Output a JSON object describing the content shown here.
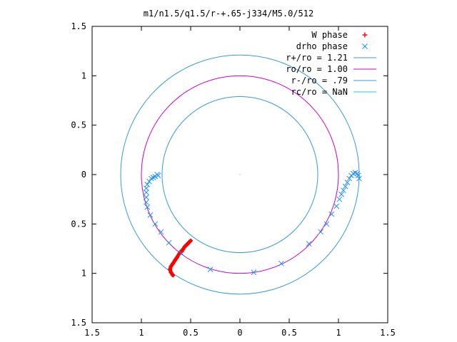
{
  "chart_data": {
    "type": "scatter",
    "title": "m1/n1.5/q1.5/r-+.65-j334/M5.0/512",
    "xlabel": "",
    "ylabel": "",
    "xlim": [
      -1.5,
      1.5
    ],
    "ylim": [
      -1.5,
      1.5
    ],
    "x_ticks": [
      -1.5,
      -1,
      -0.5,
      0,
      0.5,
      1,
      1.5
    ],
    "x_tick_labels": [
      "1.5",
      "1",
      "0.5",
      "0",
      "0.5",
      "1",
      "1.5"
    ],
    "y_ticks": [
      1.5,
      1,
      0.5,
      0,
      -0.5,
      -1,
      -1.5
    ],
    "y_tick_labels": [
      "1.5",
      "1",
      "0.5",
      "0",
      "0.5",
      "1",
      "1.5"
    ],
    "grid": false,
    "legend_position": "top-right",
    "colors": {
      "w_phase": "#ff0000",
      "drho_phase": "#1e90ff",
      "r_plus": "#3a9bdc",
      "ro": "#cc00cc",
      "r_minus": "#3a9bdc",
      "rc": "#00dddd"
    },
    "series": [
      {
        "name": "W phase",
        "style": "points",
        "marker": "+",
        "points": [
          [
            -0.5,
            -0.67
          ],
          [
            -0.52,
            -0.69
          ],
          [
            -0.54,
            -0.71
          ],
          [
            -0.56,
            -0.73
          ],
          [
            -0.58,
            -0.76
          ],
          [
            -0.6,
            -0.78
          ],
          [
            -0.62,
            -0.81
          ],
          [
            -0.64,
            -0.84
          ],
          [
            -0.66,
            -0.87
          ],
          [
            -0.68,
            -0.9
          ],
          [
            -0.7,
            -0.93
          ],
          [
            -0.71,
            -0.96
          ],
          [
            -0.7,
            -0.99
          ],
          [
            -0.68,
            -1.02
          ]
        ]
      },
      {
        "name": "drho phase",
        "style": "points",
        "marker": "x",
        "points": [
          [
            -0.83,
            -0.01
          ],
          [
            -0.84,
            0.0
          ],
          [
            -0.86,
            -0.02
          ],
          [
            -0.88,
            -0.03
          ],
          [
            -0.9,
            -0.04
          ],
          [
            -0.92,
            -0.07
          ],
          [
            -0.94,
            -0.1
          ],
          [
            -0.95,
            -0.14
          ],
          [
            -0.95,
            -0.18
          ],
          [
            -0.95,
            -0.23
          ],
          [
            -0.95,
            -0.28
          ],
          [
            -0.94,
            -0.33
          ],
          [
            -0.91,
            -0.41
          ],
          [
            -0.86,
            -0.5
          ],
          [
            -0.8,
            -0.58
          ],
          [
            -0.72,
            -0.69
          ],
          [
            -0.59,
            -0.8
          ],
          [
            -0.3,
            -0.96
          ],
          [
            0.14,
            -0.99
          ],
          [
            0.42,
            -0.9
          ],
          [
            0.7,
            -0.7
          ],
          [
            0.82,
            -0.58
          ],
          [
            0.88,
            -0.5
          ],
          [
            0.93,
            -0.4
          ],
          [
            0.98,
            -0.32
          ],
          [
            1.01,
            -0.25
          ],
          [
            1.03,
            -0.2
          ],
          [
            1.05,
            -0.16
          ],
          [
            1.07,
            -0.12
          ],
          [
            1.09,
            -0.08
          ],
          [
            1.11,
            -0.04
          ],
          [
            1.13,
            -0.01
          ],
          [
            1.15,
            0.01
          ],
          [
            1.17,
            0.02
          ],
          [
            1.19,
            0.01
          ],
          [
            1.2,
            -0.01
          ],
          [
            1.21,
            -0.04
          ]
        ]
      },
      {
        "name": "r+/ro = 1.21",
        "style": "circle",
        "radius": 1.21
      },
      {
        "name": "ro/ro = 1.00",
        "style": "circle",
        "radius": 1.0
      },
      {
        "name": "r-/ro = .79",
        "style": "circle",
        "radius": 0.79
      },
      {
        "name": "rc/ro = NaN",
        "style": "circle",
        "radius": null
      }
    ]
  }
}
